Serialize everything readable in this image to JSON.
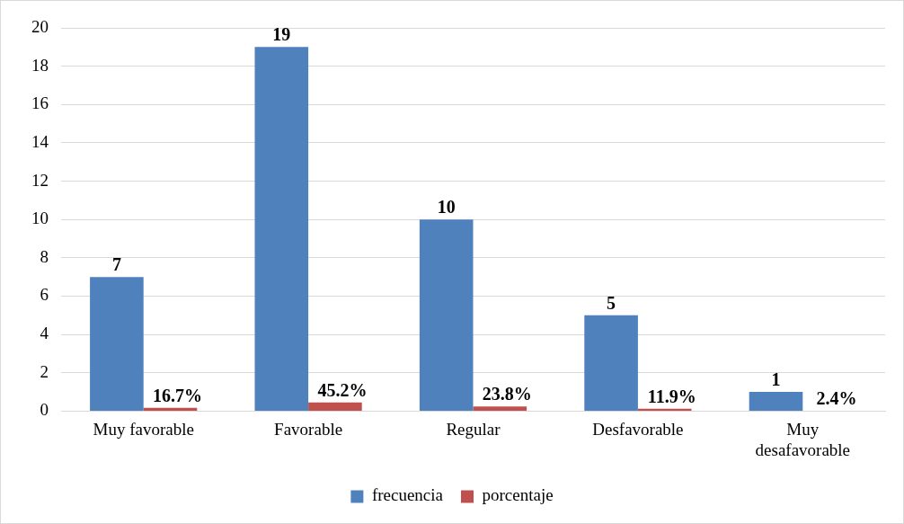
{
  "chart_data": {
    "type": "bar",
    "categories": [
      "Muy favorable",
      "Favorable",
      "Regular",
      "Desfavorable",
      "Muy desafavorable"
    ],
    "series": [
      {
        "name": "frecuencia",
        "color": "#4f81bd",
        "values": [
          7,
          19,
          10,
          5,
          1
        ],
        "value_labels": [
          "7",
          "19",
          "10",
          "5",
          "1"
        ]
      },
      {
        "name": "porcentaje",
        "color": "#c0504d",
        "values": [
          0.167,
          0.452,
          0.238,
          0.119,
          0.024
        ],
        "value_labels": [
          "16.7%",
          "45.2%",
          "23.8%",
          "11.9%",
          "2.4%"
        ]
      }
    ],
    "ylim": [
      0,
      20
    ],
    "yticks": [
      0,
      2,
      4,
      6,
      8,
      10,
      12,
      14,
      16,
      18,
      20
    ],
    "grid": "y",
    "legend": "bottom"
  }
}
